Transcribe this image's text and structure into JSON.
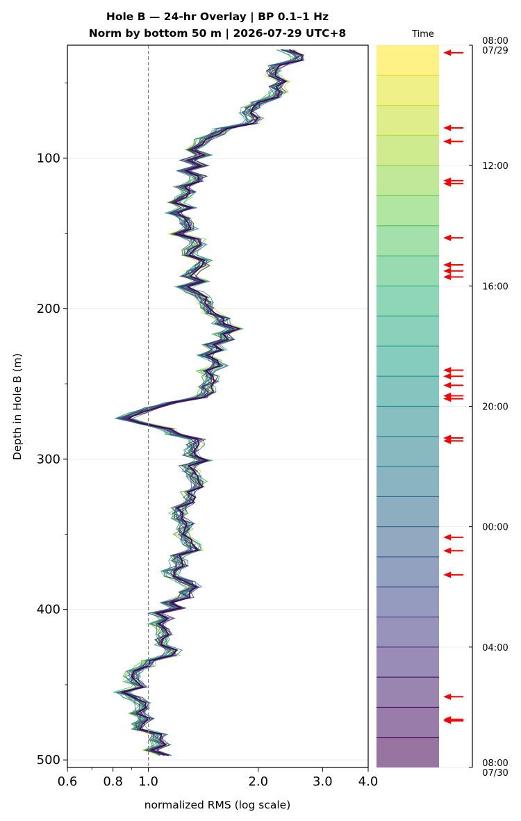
{
  "chart_data": {
    "type": "line",
    "title": "Hole B — 24-hr Overlay  |  BP 0.1–1 Hz",
    "subtitle": "Norm by bottom 50 m  |  2026-07-29 UTC+8",
    "xlabel": "normalized RMS  (log scale)",
    "ylabel": "Depth in Hole B (m)",
    "x_scale": "log",
    "xlim": [
      0.6,
      4.0
    ],
    "ylim": [
      505,
      25
    ],
    "x_ticks": [
      0.6,
      0.8,
      1.0,
      2.0,
      3.0,
      4.0
    ],
    "x_tick_labels": [
      "0.6",
      "0.8",
      "1.0",
      "2.0",
      "3.0",
      "4.0"
    ],
    "y_ticks": [
      100,
      200,
      300,
      400,
      500
    ],
    "y_tick_labels": [
      "100",
      "200",
      "300",
      "400",
      "500"
    ],
    "reference_line_x": 1.0,
    "grid": "horizontal",
    "colormap": "viridis (reversed: yellow at start, dark purple at end)",
    "series_count": 24,
    "mean_profile": [
      {
        "depth": 28,
        "x": 2.5
      },
      {
        "depth": 45,
        "x": 2.3
      },
      {
        "depth": 60,
        "x": 2.1
      },
      {
        "depth": 75,
        "x": 1.85
      },
      {
        "depth": 85,
        "x": 1.55
      },
      {
        "depth": 95,
        "x": 1.35
      },
      {
        "depth": 110,
        "x": 1.3
      },
      {
        "depth": 125,
        "x": 1.25
      },
      {
        "depth": 140,
        "x": 1.18
      },
      {
        "depth": 155,
        "x": 1.28
      },
      {
        "depth": 170,
        "x": 1.4
      },
      {
        "depth": 185,
        "x": 1.28
      },
      {
        "depth": 200,
        "x": 1.45
      },
      {
        "depth": 215,
        "x": 1.7
      },
      {
        "depth": 230,
        "x": 1.5
      },
      {
        "depth": 245,
        "x": 1.45
      },
      {
        "depth": 255,
        "x": 1.55
      },
      {
        "depth": 263,
        "x": 1.2
      },
      {
        "depth": 272,
        "x": 0.86
      },
      {
        "depth": 285,
        "x": 1.3
      },
      {
        "depth": 300,
        "x": 1.35
      },
      {
        "depth": 315,
        "x": 1.3
      },
      {
        "depth": 330,
        "x": 1.25
      },
      {
        "depth": 345,
        "x": 1.22
      },
      {
        "depth": 358,
        "x": 1.35
      },
      {
        "depth": 370,
        "x": 1.18
      },
      {
        "depth": 385,
        "x": 1.3
      },
      {
        "depth": 400,
        "x": 1.15
      },
      {
        "depth": 410,
        "x": 1.02
      },
      {
        "depth": 425,
        "x": 1.15
      },
      {
        "depth": 440,
        "x": 0.96
      },
      {
        "depth": 455,
        "x": 0.9
      },
      {
        "depth": 470,
        "x": 0.95
      },
      {
        "depth": 485,
        "x": 1.02
      },
      {
        "depth": 497,
        "x": 1.05
      }
    ],
    "colorbar": {
      "label": "Time",
      "ticks": [
        {
          "hours": 0,
          "label": "08:00",
          "sublabel": "07/29"
        },
        {
          "hours": 4,
          "label": "12:00",
          "sublabel": ""
        },
        {
          "hours": 8,
          "label": "16:00",
          "sublabel": ""
        },
        {
          "hours": 12,
          "label": "20:00",
          "sublabel": ""
        },
        {
          "hours": 16,
          "label": "00:00",
          "sublabel": ""
        },
        {
          "hours": 20,
          "label": "04:00",
          "sublabel": ""
        },
        {
          "hours": 24,
          "label": "08:00",
          "sublabel": "07/30"
        }
      ],
      "bins": 24,
      "event_marker_hours": [
        0.25,
        2.75,
        3.2,
        4.5,
        4.6,
        6.4,
        7.3,
        7.5,
        7.7,
        10.8,
        11.0,
        11.3,
        11.65,
        11.75,
        13.05,
        13.15,
        16.35,
        16.8,
        17.6,
        21.65,
        22.4,
        22.45
      ],
      "event_marker_color": "#ff0000"
    }
  }
}
